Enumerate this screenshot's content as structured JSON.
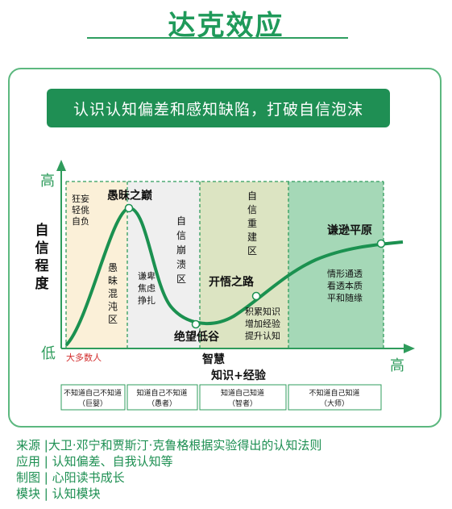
{
  "title": "达克效应",
  "banner": "认识认知偏差和感知缺陷，打破自信泡沫",
  "axes": {
    "y_label": [
      "自",
      "信",
      "程",
      "度"
    ],
    "y_high": "高",
    "y_low": "低",
    "x_high": "高",
    "x_label": "知识+经验"
  },
  "zones": [
    {
      "text": [
        "狂妄",
        "轻佻",
        "自负"
      ],
      "color": "#fbf0d8"
    },
    {
      "text": [
        "愚",
        "昧",
        "混",
        "沌",
        "区"
      ]
    },
    {
      "text": [
        "谦卑",
        "焦虑",
        "挣扎"
      ],
      "color": "#efefef"
    },
    {
      "text": [
        "自",
        "信",
        "崩",
        "溃",
        "区"
      ]
    },
    {
      "text": [
        "自",
        "信",
        "重",
        "建",
        "区"
      ],
      "color": "#dce4c2"
    },
    {
      "text": [
        "积累知识",
        "增加经验",
        "提升认知"
      ]
    },
    {
      "text": [
        "情形通透",
        "看透本质",
        "平和随缘"
      ],
      "color": "#a5d8b7"
    }
  ],
  "points": {
    "peak": "愚昧之巅",
    "valley": "绝望低谷",
    "slope": "开悟之路",
    "plateau": "谦逊平原"
  },
  "majority": "大多数人",
  "wisdom": "智慧",
  "stages": [
    {
      "desc": "不知道自己不知道",
      "name": "（巨婴）"
    },
    {
      "desc": "知道自己不知道",
      "name": "（愚者）"
    },
    {
      "desc": "知道自己知道",
      "name": "（智者）"
    },
    {
      "desc": "不知道自己知道",
      "name": "（大师）"
    }
  ],
  "footer": [
    "来源 |大卫·邓宁和贾斯汀·克鲁格根据实验得出的认知法则",
    "应用 | 认知偏差、自我认知等",
    "制图 | 心阳读书成长",
    "模块 | 认知模块"
  ],
  "colors": {
    "accent": "#1f9a5a",
    "curve": "#1b9150",
    "majority": "#d22b2b"
  }
}
